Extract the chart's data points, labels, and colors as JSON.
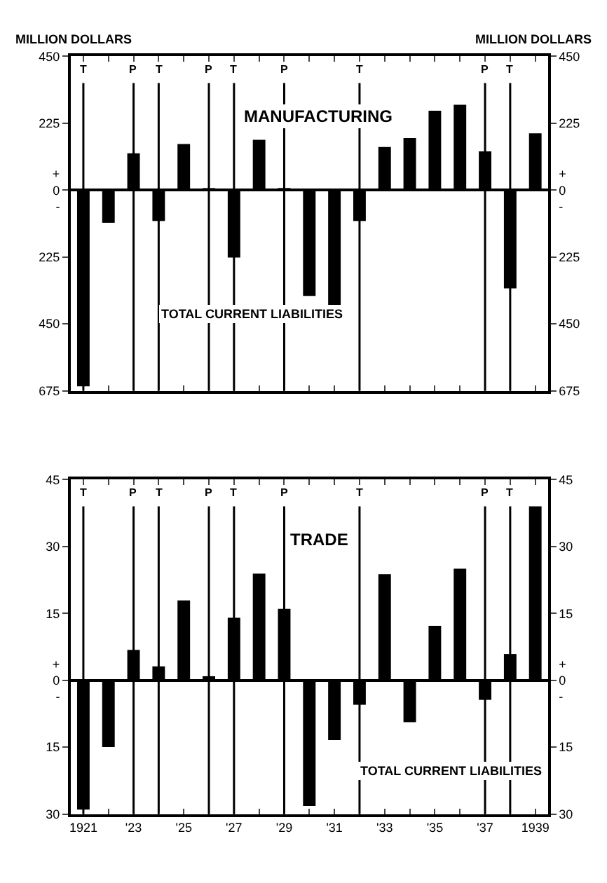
{
  "chart_data": [
    {
      "type": "bar",
      "title": "MANUFACTURING",
      "ylabel": "MILLION DOLLARS",
      "y2label": "MILLION DOLLARS",
      "annotations": [
        "TOTAL CURRENT LIABILITIES"
      ],
      "x": [
        1921,
        1922,
        1923,
        1924,
        1925,
        1926,
        1927,
        1928,
        1929,
        1930,
        1931,
        1932,
        1933,
        1934,
        1935,
        1936,
        1937,
        1938,
        1939
      ],
      "values": [
        -660,
        -110,
        124,
        -104,
        155,
        5,
        -227,
        169,
        7,
        -356,
        -393,
        -104,
        145,
        175,
        267,
        287,
        130,
        -331,
        191
      ],
      "color": "#000000",
      "xlim": [
        1920.5,
        1939.5
      ],
      "xticks": [
        {
          "value": 1921,
          "label": null
        },
        {
          "value": 1922,
          "label": null
        },
        {
          "value": 1923,
          "label": null
        },
        {
          "value": 1924,
          "label": null
        },
        {
          "value": 1925,
          "label": null
        },
        {
          "value": 1926,
          "label": null
        },
        {
          "value": 1927,
          "label": null
        },
        {
          "value": 1928,
          "label": null
        },
        {
          "value": 1929,
          "label": null
        },
        {
          "value": 1930,
          "label": null
        },
        {
          "value": 1931,
          "label": null
        },
        {
          "value": 1932,
          "label": null
        },
        {
          "value": 1933,
          "label": null
        },
        {
          "value": 1934,
          "label": null
        },
        {
          "value": 1935,
          "label": null
        },
        {
          "value": 1936,
          "label": null
        },
        {
          "value": 1937,
          "label": null
        },
        {
          "value": 1938,
          "label": null
        },
        {
          "value": 1939,
          "label": null
        }
      ],
      "ylim": [
        -675,
        450
      ],
      "yticks": [
        450,
        225,
        {
          "value": 0,
          "label": "+\n0\n-"
        },
        {
          "value": -225,
          "label": "225"
        },
        {
          "value": -450,
          "label": "450"
        },
        {
          "value": -675,
          "label": "675"
        }
      ],
      "y2lim": [
        -675,
        450
      ],
      "y2ticks": [
        450,
        225,
        {
          "value": 0,
          "label": "+\n0\n-"
        },
        {
          "value": -225,
          "label": "225"
        },
        {
          "value": -450,
          "label": "450"
        },
        {
          "value": -675,
          "label": "675"
        }
      ],
      "ref_lines": [
        {
          "axis": "x",
          "value": 1921,
          "label": "T"
        },
        {
          "axis": "x",
          "value": 1923,
          "label": "P"
        },
        {
          "axis": "x",
          "value": 1924,
          "label": "T"
        },
        {
          "axis": "x",
          "value": 1926,
          "label": "P"
        },
        {
          "axis": "x",
          "value": 1927,
          "label": "T"
        },
        {
          "axis": "x",
          "value": 1929,
          "label": "P"
        },
        {
          "axis": "x",
          "value": 1932,
          "label": "T"
        },
        {
          "axis": "x",
          "value": 1937,
          "label": "P"
        },
        {
          "axis": "x",
          "value": 1938,
          "label": "T"
        }
      ],
      "tick_labels": "y"
    },
    {
      "type": "bar",
      "title": "TRADE",
      "annotations": [
        "TOTAL CURRENT LIABILITIES"
      ],
      "x": [
        1921,
        1922,
        1923,
        1924,
        1925,
        1926,
        1927,
        1928,
        1929,
        1930,
        1931,
        1932,
        1933,
        1934,
        1935,
        1936,
        1937,
        1938,
        1939
      ],
      "values": [
        -29,
        -15,
        6.8,
        3.1,
        17.9,
        0.9,
        14,
        23.9,
        16,
        -28.2,
        -13.4,
        -5.5,
        23.8,
        -9.4,
        12.2,
        25,
        -4.4,
        5.9,
        39
      ],
      "color": "#000000",
      "xlim": [
        1920.5,
        1939.5
      ],
      "xticks": [
        {
          "value": 1921,
          "label": "1921"
        },
        {
          "value": 1922,
          "label": null
        },
        {
          "value": 1923,
          "label": "'23"
        },
        {
          "value": 1924,
          "label": null
        },
        {
          "value": 1925,
          "label": "'25"
        },
        {
          "value": 1926,
          "label": null
        },
        {
          "value": 1927,
          "label": "'27"
        },
        {
          "value": 1928,
          "label": null
        },
        {
          "value": 1929,
          "label": "'29"
        },
        {
          "value": 1930,
          "label": null
        },
        {
          "value": 1931,
          "label": "'31"
        },
        {
          "value": 1932,
          "label": null
        },
        {
          "value": 1933,
          "label": "'33"
        },
        {
          "value": 1934,
          "label": null
        },
        {
          "value": 1935,
          "label": "'35"
        },
        {
          "value": 1936,
          "label": null
        },
        {
          "value": 1937,
          "label": "'37"
        },
        {
          "value": 1938,
          "label": null
        },
        {
          "value": 1939,
          "label": "1939"
        }
      ],
      "ylim": [
        -30,
        45
      ],
      "yticks": [
        45,
        30,
        15,
        {
          "value": 0,
          "label": "+\n0\n-"
        },
        {
          "value": -15,
          "label": "15"
        },
        {
          "value": -30,
          "label": "30"
        }
      ],
      "y2lim": [
        -30,
        45
      ],
      "y2ticks": [
        45,
        30,
        15,
        {
          "value": 0,
          "label": "+\n0\n-"
        },
        {
          "value": -15,
          "label": "15"
        },
        {
          "value": -30,
          "label": "30"
        }
      ],
      "ref_lines": [
        {
          "axis": "x",
          "value": 1921,
          "label": "T"
        },
        {
          "axis": "x",
          "value": 1923,
          "label": "P"
        },
        {
          "axis": "x",
          "value": 1924,
          "label": "T"
        },
        {
          "axis": "x",
          "value": 1926,
          "label": "P"
        },
        {
          "axis": "x",
          "value": 1927,
          "label": "T"
        },
        {
          "axis": "x",
          "value": 1929,
          "label": "P"
        },
        {
          "axis": "x",
          "value": 1932,
          "label": "T"
        },
        {
          "axis": "x",
          "value": 1937,
          "label": "P"
        },
        {
          "axis": "x",
          "value": 1938,
          "label": "T"
        }
      ]
    }
  ]
}
